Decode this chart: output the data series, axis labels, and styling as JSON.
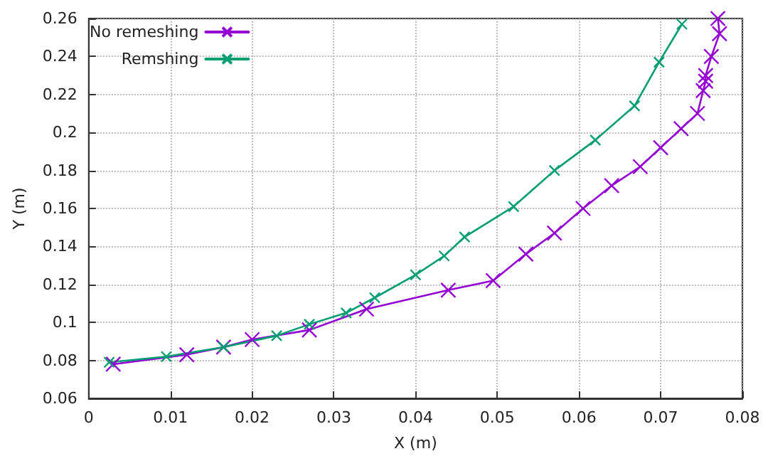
{
  "chart_data": {
    "type": "line",
    "xlabel": "X (m)",
    "ylabel": "Y (m)",
    "xlim": [
      0,
      0.08
    ],
    "xticks": [
      0,
      0.01,
      0.02,
      0.03,
      0.04,
      0.05,
      0.06,
      0.07,
      0.08
    ],
    "ylim": [
      0.06,
      0.26
    ],
    "yticks": [
      0.06,
      0.08,
      0.1,
      0.12,
      0.14,
      0.16,
      0.18,
      0.2,
      0.22,
      0.24,
      0.26
    ],
    "grid": true,
    "legend": "top left",
    "marker": "cross",
    "line_style": "solid",
    "series": [
      {
        "name": "No remeshing",
        "color": "#9400d3",
        "x": [
          0.003,
          0.012,
          0.0165,
          0.02,
          0.027,
          0.034,
          0.044,
          0.0495,
          0.0535,
          0.057,
          0.0605,
          0.064,
          0.0675,
          0.07,
          0.0725,
          0.0745,
          0.0752,
          0.0755,
          0.0755,
          0.0762,
          0.0772,
          0.077
        ],
        "values": [
          0.078,
          0.083,
          0.087,
          0.091,
          0.096,
          0.107,
          0.117,
          0.122,
          0.136,
          0.147,
          0.16,
          0.172,
          0.182,
          0.192,
          0.202,
          0.21,
          0.222,
          0.227,
          0.23,
          0.24,
          0.252,
          0.26
        ]
      },
      {
        "name": "Remshing",
        "color": "#009e73",
        "x": [
          0.0025,
          0.0095,
          0.0165,
          0.023,
          0.027,
          0.0315,
          0.035,
          0.04,
          0.0435,
          0.046,
          0.052,
          0.057,
          0.062,
          0.0668,
          0.0698,
          0.0726
        ],
        "values": [
          0.079,
          0.082,
          0.087,
          0.093,
          0.099,
          0.105,
          0.113,
          0.125,
          0.135,
          0.145,
          0.161,
          0.18,
          0.196,
          0.214,
          0.237,
          0.257
        ]
      }
    ]
  }
}
